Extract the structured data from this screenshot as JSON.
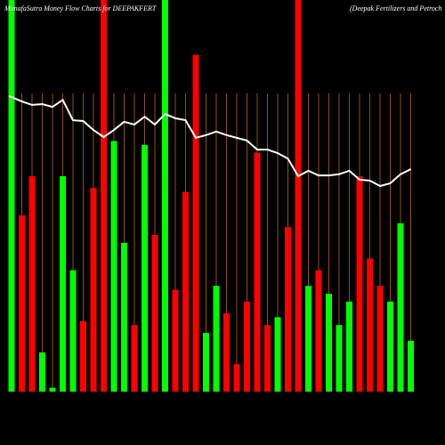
{
  "chart_data": {
    "type": "bar",
    "title": "MunafaSutra  Money Flow  Charts for DEEPAKFERT",
    "subtitle": "(Deepak Fertilizers and Petroch",
    "categories": [
      null,
      null,
      null,
      null,
      null,
      null,
      null,
      null,
      null,
      null,
      null,
      null,
      null,
      null,
      null,
      null,
      null,
      null,
      null,
      null,
      null,
      null,
      null,
      null,
      null,
      null,
      null,
      null,
      null,
      null,
      null,
      null,
      null,
      null,
      null,
      null,
      null,
      null,
      null,
      null
    ],
    "ylim": [
      0,
      100
    ],
    "series": [
      {
        "values": [
          100,
          45,
          55,
          10,
          1,
          55,
          31,
          18,
          52,
          100,
          64,
          38,
          17,
          63,
          40,
          100,
          26,
          51,
          86,
          15,
          27,
          20,
          7,
          23,
          61,
          17,
          19,
          42,
          100,
          27,
          31,
          25,
          17,
          23,
          55,
          34,
          27,
          23,
          43,
          13
        ],
        "colors": [
          "#00ff00",
          "#ff0000",
          "#ff0000",
          "#00ff00",
          "#00ff00",
          "#00ff00",
          "#00ff00",
          "#ff0000",
          "#ff0000",
          "#ff0000",
          "#00ff00",
          "#00ff00",
          "#ff0000",
          "#00ff00",
          "#ff0000",
          "#00ff00",
          "#ff0000",
          "#ff0000",
          "#ff0000",
          "#00ff00",
          "#00ff00",
          "#ff0000",
          "#ff0000",
          "#ff0000",
          "#ff0000",
          "#ff0000",
          "#00ff00",
          "#ff0000",
          "#ff0000",
          "#00ff00",
          "#ff0000",
          "#00ff00",
          "#00ff00",
          "#00ff00",
          "#ff0000",
          "#ff0000",
          "#ff0000",
          "#00ff00",
          "#00ff00",
          "#00ff00"
        ]
      },
      {
        "type": "line",
        "color": "#ffffff",
        "values": [
          75.5,
          74.1,
          73.2,
          73.4,
          72.7,
          74.5,
          69.3,
          69.1,
          66.8,
          65,
          66.8,
          68.9,
          68.2,
          70.2,
          68.2,
          70.9,
          69.8,
          69.3,
          64.8,
          65.5,
          66.4,
          65.5,
          64.8,
          64.1,
          61.8,
          61.8,
          60.9,
          59.5,
          55,
          56.4,
          55.2,
          55.2,
          55.5,
          56.4,
          54.1,
          53.9,
          52.5,
          53.2,
          55.5,
          56.8
        ]
      }
    ]
  }
}
